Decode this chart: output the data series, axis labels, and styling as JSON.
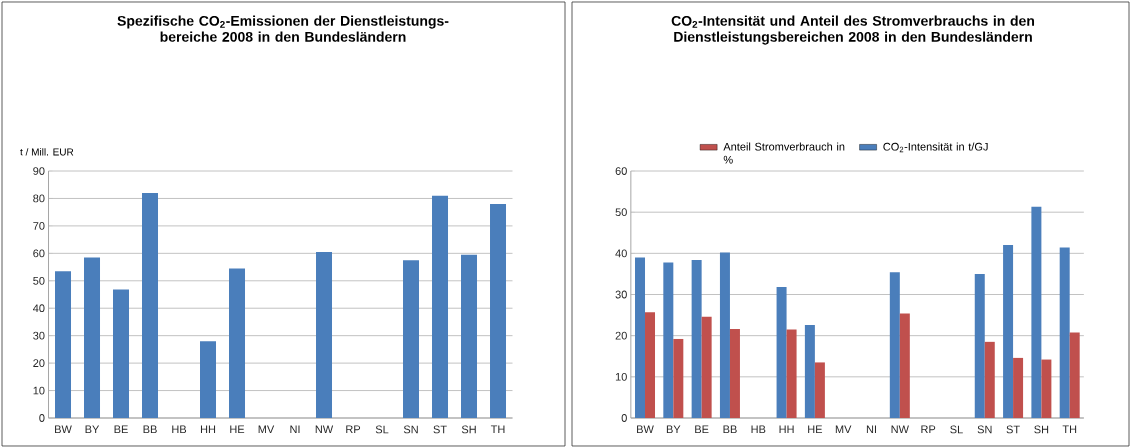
{
  "chart_data": [
    {
      "type": "bar",
      "title": "Spezifische CO$_{2}$-Emissionen der Dienstleistungs-bereiche 2008 in den Bundesländern",
      "ylabel": "t / Mill. EUR",
      "categories": [
        "BW",
        "BY",
        "BE",
        "BB",
        "HB",
        "HH",
        "HE",
        "MV",
        "NI",
        "NW",
        "RP",
        "SL",
        "SN",
        "ST",
        "SH",
        "TH"
      ],
      "series": [
        {
          "color": "#4a7ebb",
          "values": [
            53.5,
            58.5,
            46.8,
            82,
            null,
            28,
            54.5,
            null,
            null,
            60.5,
            null,
            null,
            57.5,
            81,
            59.5,
            78
          ]
        }
      ],
      "ylim": [
        0,
        90
      ],
      "yticks": [
        0,
        10,
        20,
        30,
        40,
        50,
        60,
        70,
        80,
        90
      ],
      "grid": "y",
      "legend": false
    },
    {
      "type": "bar",
      "title": "CO$_{2}$-Intensität und Anteil des Stromverbrauchs in den Dienstleistungsbereichen 2008 in den Bundesländern",
      "categories": [
        "BW",
        "BY",
        "BE",
        "BB",
        "HB",
        "HH",
        "HE",
        "MV",
        "NI",
        "NW",
        "RP",
        "SL",
        "SN",
        "ST",
        "SH",
        "TH"
      ],
      "series": [
        {
          "name": "CO$_{2}$-Intensität in t/GJ",
          "color": "#4a7ebb",
          "values": [
            39,
            37.8,
            38.4,
            40.2,
            null,
            31.8,
            22.6,
            null,
            null,
            35.4,
            null,
            null,
            35,
            42,
            51.3,
            41.4
          ]
        },
        {
          "name": "Anteil Stromverbrauch in %",
          "color": "#c0504d",
          "values": [
            25.7,
            19.2,
            24.6,
            21.6,
            null,
            21.5,
            13.5,
            null,
            null,
            25.4,
            null,
            null,
            18.5,
            14.6,
            14.2,
            20.8
          ]
        }
      ],
      "ylim": [
        0,
        60
      ],
      "yticks": [
        0,
        10,
        20,
        30,
        40,
        50,
        60
      ],
      "grid": "y",
      "legend": "top"
    }
  ]
}
